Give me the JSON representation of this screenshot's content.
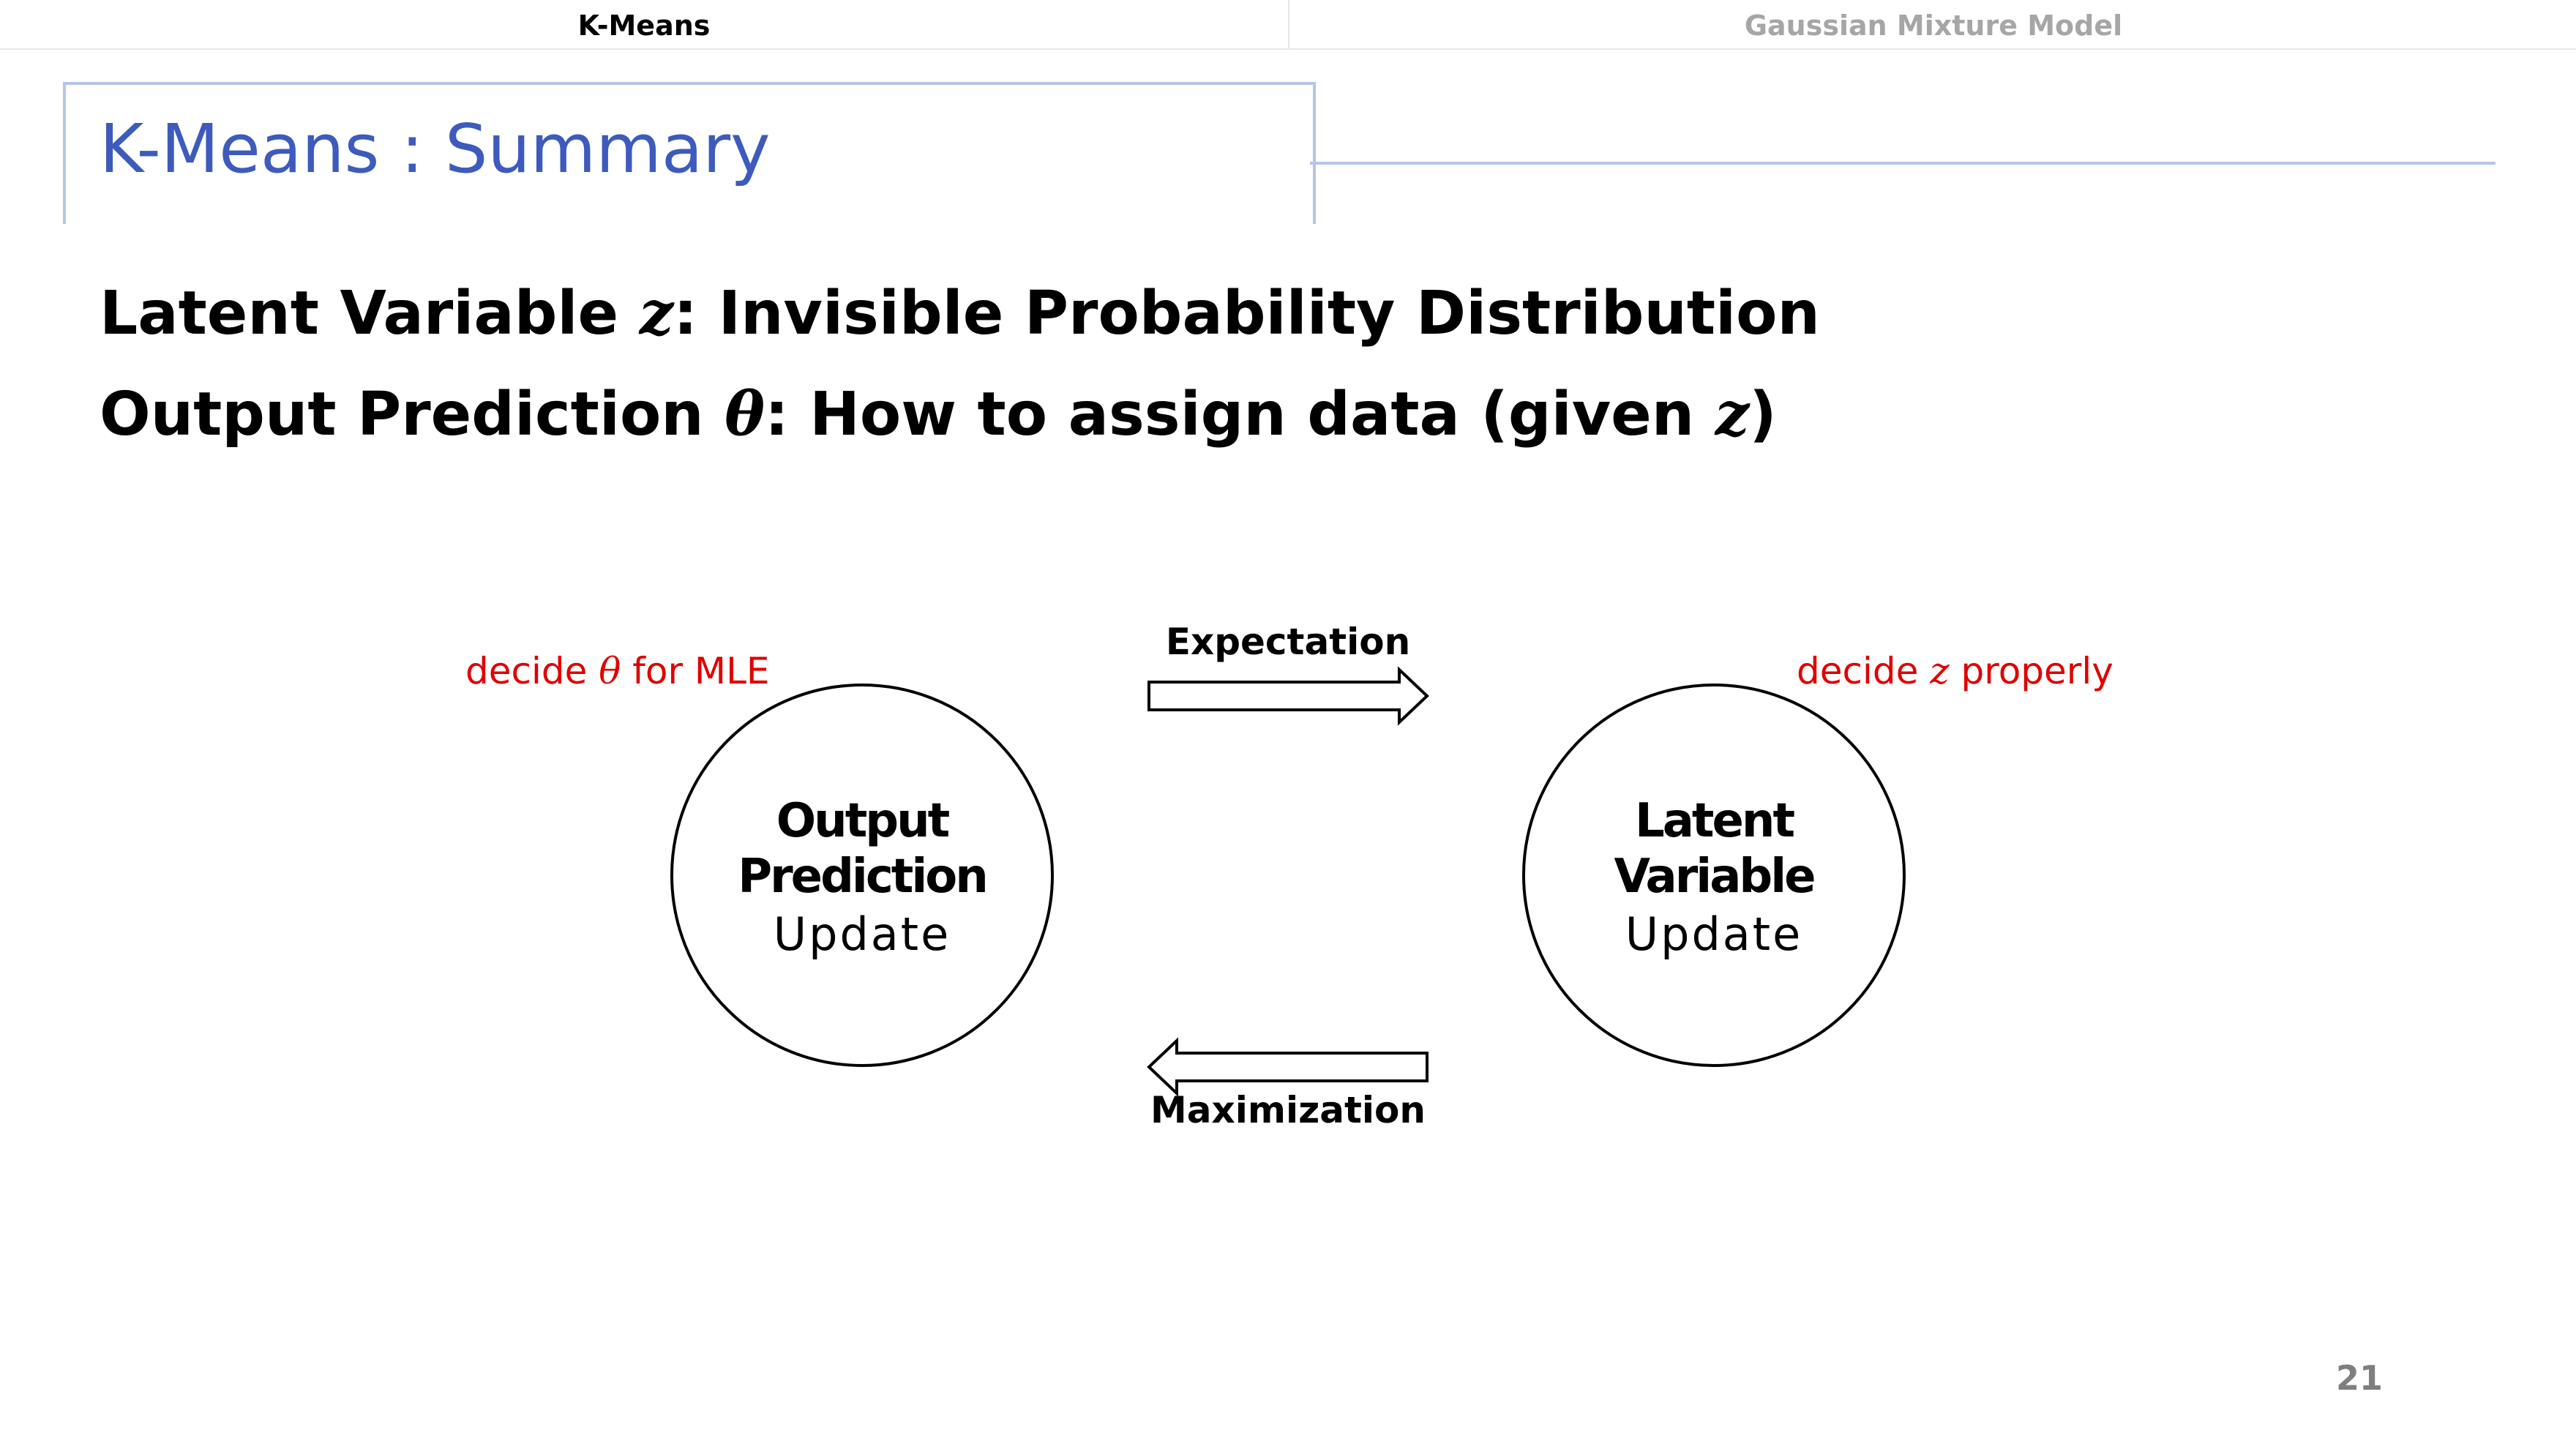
{
  "tabs": [
    {
      "label": "K-Means"
    },
    {
      "label": "Gaussian Mixture Model"
    }
  ],
  "slide": {
    "title": "K-Means : Summary",
    "statement1": {
      "before": "Latent Variable ",
      "symbol": "z",
      "after": ": Invisible Probability Distribution"
    },
    "statement2": {
      "before": "Output Prediction ",
      "symbol": "θ",
      "after": ": How to assign data (given ",
      "symbol2": "z",
      "end": ")"
    },
    "page_number": "21"
  },
  "diagram": {
    "left_node": {
      "title_line1": "Output",
      "title_line2": "Prediction",
      "subtitle": "Update"
    },
    "right_node": {
      "title_line1": "Latent",
      "title_line2": "Variable",
      "subtitle": "Update"
    },
    "top_arrow_label": "Expectation",
    "bottom_arrow_label": "Maximization",
    "left_note": {
      "before": "decide ",
      "symbol": "θ",
      "after": " for MLE"
    },
    "right_note": {
      "before": "decide ",
      "symbol": "z",
      "after": " properly"
    },
    "note_color": "#e00000",
    "accent_color": "#3d5bbd"
  }
}
